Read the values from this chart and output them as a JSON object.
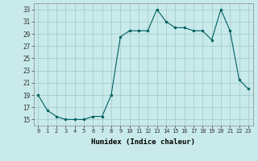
{
  "x": [
    0,
    1,
    2,
    3,
    4,
    5,
    6,
    7,
    8,
    9,
    10,
    11,
    12,
    13,
    14,
    15,
    16,
    17,
    18,
    19,
    20,
    21,
    22,
    23
  ],
  "y": [
    19,
    16.5,
    15.5,
    15,
    15,
    15,
    15.5,
    15.5,
    19,
    28.5,
    29.5,
    29.5,
    29.5,
    33,
    31,
    30,
    30,
    29.5,
    29.5,
    28,
    33,
    29.5,
    21.5,
    20
  ],
  "line_color": "#006060",
  "marker_color": "#006060",
  "bg_color": "#c8eaea",
  "grid_color": "#a8cccc",
  "xlabel": "Humidex (Indice chaleur)",
  "ylim": [
    14,
    34
  ],
  "xlim": [
    -0.5,
    23.5
  ],
  "yticks": [
    15,
    17,
    19,
    21,
    23,
    25,
    27,
    29,
    31,
    33
  ],
  "xticks": [
    0,
    1,
    2,
    3,
    4,
    5,
    6,
    7,
    8,
    9,
    10,
    11,
    12,
    13,
    14,
    15,
    16,
    17,
    18,
    19,
    20,
    21,
    22,
    23
  ],
  "xtick_labels": [
    "0",
    "1",
    "2",
    "3",
    "4",
    "5",
    "6",
    "7",
    "8",
    "9",
    "10",
    "11",
    "12",
    "13",
    "14",
    "15",
    "16",
    "17",
    "18",
    "19",
    "20",
    "21",
    "22",
    "23"
  ],
  "font_family": "monospace"
}
